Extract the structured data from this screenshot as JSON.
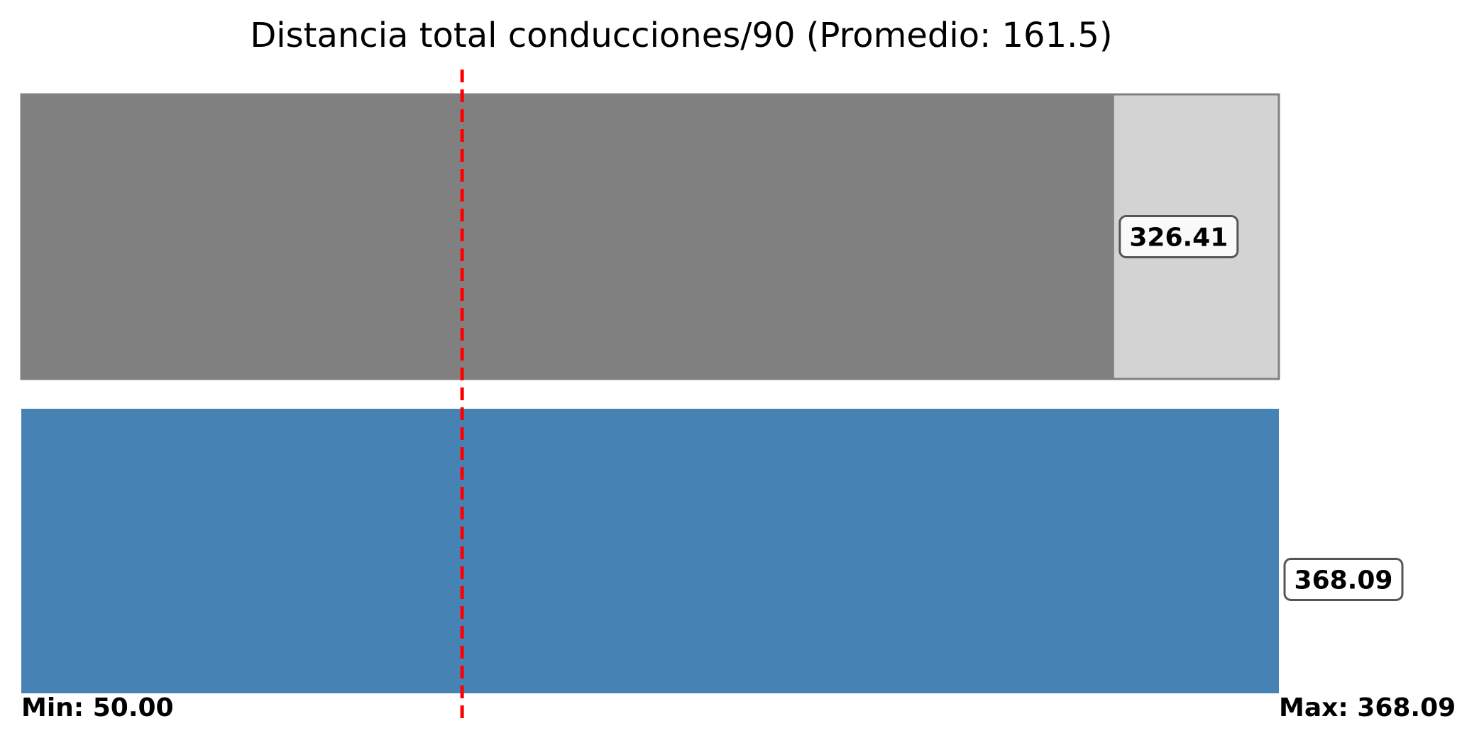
{
  "chart_data": {
    "type": "bar",
    "orientation": "horizontal",
    "title": "Distancia total conducciones/90 (Promedio: 161.5)",
    "xlim": [
      50.0,
      368.09
    ],
    "average": 161.5,
    "min_label": "Min: 50.00",
    "max_label": "Max: 368.09",
    "series": [
      {
        "value": 326.41,
        "value_label": "326.41",
        "bar_color": "#808080",
        "track_color": "#d3d3d3",
        "has_track": true
      },
      {
        "value": 368.09,
        "value_label": "368.09",
        "bar_color": "#4682b4",
        "track_color": "#d3d3d3",
        "has_track": false
      }
    ],
    "reference_line": {
      "value": 161.5,
      "color": "#ff0000",
      "style": "dashed"
    },
    "grid": false,
    "legend": "none"
  }
}
